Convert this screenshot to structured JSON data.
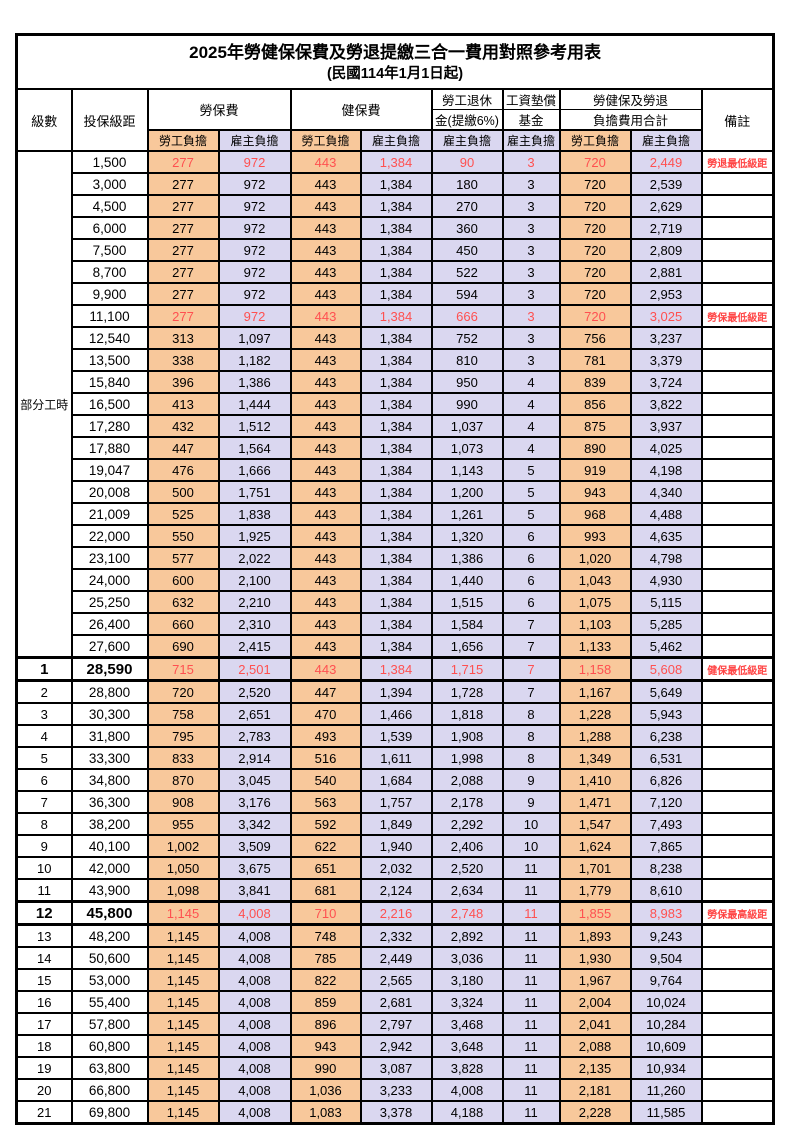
{
  "title": "2025年勞健保保費及勞退提繳三合一費用對照參考用表",
  "subtitle": "(民國114年1月1日起)",
  "columns": {
    "level": "級數",
    "salary": "投保級距",
    "labor_ins": "勞保費",
    "health_ins": "健保費",
    "pension_l1": "勞工退休",
    "pension_l2": "金(提繳6%)",
    "fund_l1": "工資墊償",
    "fund_l2": "基金",
    "total_l1": "勞健保及勞退",
    "total_l2": "負擔費用合計",
    "remark": "備註",
    "employee_share": "勞工負擔",
    "employer_share": "雇主負擔"
  },
  "part_time_label": "部分工時",
  "part_time_rowspan": 23,
  "colors": {
    "employee_bg": "#F8C89B",
    "employer_bg": "#DAD7F0",
    "highlight_red": "#FF5050"
  },
  "rows": [
    {
      "level": "",
      "salary": "1,500",
      "li_emp": "277",
      "li_er": "972",
      "hi_emp": "443",
      "hi_er": "1,384",
      "pension": "90",
      "fund": "3",
      "tot_emp": "720",
      "tot_er": "2,449",
      "remark": "勞退最低級距",
      "red": true,
      "bold": false
    },
    {
      "level": "",
      "salary": "3,000",
      "li_emp": "277",
      "li_er": "972",
      "hi_emp": "443",
      "hi_er": "1,384",
      "pension": "180",
      "fund": "3",
      "tot_emp": "720",
      "tot_er": "2,539",
      "remark": "",
      "red": false,
      "bold": false
    },
    {
      "level": "",
      "salary": "4,500",
      "li_emp": "277",
      "li_er": "972",
      "hi_emp": "443",
      "hi_er": "1,384",
      "pension": "270",
      "fund": "3",
      "tot_emp": "720",
      "tot_er": "2,629",
      "remark": "",
      "red": false,
      "bold": false
    },
    {
      "level": "",
      "salary": "6,000",
      "li_emp": "277",
      "li_er": "972",
      "hi_emp": "443",
      "hi_er": "1,384",
      "pension": "360",
      "fund": "3",
      "tot_emp": "720",
      "tot_er": "2,719",
      "remark": "",
      "red": false,
      "bold": false
    },
    {
      "level": "",
      "salary": "7,500",
      "li_emp": "277",
      "li_er": "972",
      "hi_emp": "443",
      "hi_er": "1,384",
      "pension": "450",
      "fund": "3",
      "tot_emp": "720",
      "tot_er": "2,809",
      "remark": "",
      "red": false,
      "bold": false
    },
    {
      "level": "",
      "salary": "8,700",
      "li_emp": "277",
      "li_er": "972",
      "hi_emp": "443",
      "hi_er": "1,384",
      "pension": "522",
      "fund": "3",
      "tot_emp": "720",
      "tot_er": "2,881",
      "remark": "",
      "red": false,
      "bold": false
    },
    {
      "level": "",
      "salary": "9,900",
      "li_emp": "277",
      "li_er": "972",
      "hi_emp": "443",
      "hi_er": "1,384",
      "pension": "594",
      "fund": "3",
      "tot_emp": "720",
      "tot_er": "2,953",
      "remark": "",
      "red": false,
      "bold": false
    },
    {
      "level": "",
      "salary": "11,100",
      "li_emp": "277",
      "li_er": "972",
      "hi_emp": "443",
      "hi_er": "1,384",
      "pension": "666",
      "fund": "3",
      "tot_emp": "720",
      "tot_er": "3,025",
      "remark": "勞保最低級距",
      "red": true,
      "bold": false
    },
    {
      "level": "",
      "salary": "12,540",
      "li_emp": "313",
      "li_er": "1,097",
      "hi_emp": "443",
      "hi_er": "1,384",
      "pension": "752",
      "fund": "3",
      "tot_emp": "756",
      "tot_er": "3,237",
      "remark": "",
      "red": false,
      "bold": false
    },
    {
      "level": "",
      "salary": "13,500",
      "li_emp": "338",
      "li_er": "1,182",
      "hi_emp": "443",
      "hi_er": "1,384",
      "pension": "810",
      "fund": "3",
      "tot_emp": "781",
      "tot_er": "3,379",
      "remark": "",
      "red": false,
      "bold": false
    },
    {
      "level": "",
      "salary": "15,840",
      "li_emp": "396",
      "li_er": "1,386",
      "hi_emp": "443",
      "hi_er": "1,384",
      "pension": "950",
      "fund": "4",
      "tot_emp": "839",
      "tot_er": "3,724",
      "remark": "",
      "red": false,
      "bold": false
    },
    {
      "level": "",
      "salary": "16,500",
      "li_emp": "413",
      "li_er": "1,444",
      "hi_emp": "443",
      "hi_er": "1,384",
      "pension": "990",
      "fund": "4",
      "tot_emp": "856",
      "tot_er": "3,822",
      "remark": "",
      "red": false,
      "bold": false
    },
    {
      "level": "",
      "salary": "17,280",
      "li_emp": "432",
      "li_er": "1,512",
      "hi_emp": "443",
      "hi_er": "1,384",
      "pension": "1,037",
      "fund": "4",
      "tot_emp": "875",
      "tot_er": "3,937",
      "remark": "",
      "red": false,
      "bold": false
    },
    {
      "level": "",
      "salary": "17,880",
      "li_emp": "447",
      "li_er": "1,564",
      "hi_emp": "443",
      "hi_er": "1,384",
      "pension": "1,073",
      "fund": "4",
      "tot_emp": "890",
      "tot_er": "4,025",
      "remark": "",
      "red": false,
      "bold": false
    },
    {
      "level": "",
      "salary": "19,047",
      "li_emp": "476",
      "li_er": "1,666",
      "hi_emp": "443",
      "hi_er": "1,384",
      "pension": "1,143",
      "fund": "5",
      "tot_emp": "919",
      "tot_er": "4,198",
      "remark": "",
      "red": false,
      "bold": false
    },
    {
      "level": "",
      "salary": "20,008",
      "li_emp": "500",
      "li_er": "1,751",
      "hi_emp": "443",
      "hi_er": "1,384",
      "pension": "1,200",
      "fund": "5",
      "tot_emp": "943",
      "tot_er": "4,340",
      "remark": "",
      "red": false,
      "bold": false
    },
    {
      "level": "",
      "salary": "21,009",
      "li_emp": "525",
      "li_er": "1,838",
      "hi_emp": "443",
      "hi_er": "1,384",
      "pension": "1,261",
      "fund": "5",
      "tot_emp": "968",
      "tot_er": "4,488",
      "remark": "",
      "red": false,
      "bold": false
    },
    {
      "level": "",
      "salary": "22,000",
      "li_emp": "550",
      "li_er": "1,925",
      "hi_emp": "443",
      "hi_er": "1,384",
      "pension": "1,320",
      "fund": "6",
      "tot_emp": "993",
      "tot_er": "4,635",
      "remark": "",
      "red": false,
      "bold": false
    },
    {
      "level": "",
      "salary": "23,100",
      "li_emp": "577",
      "li_er": "2,022",
      "hi_emp": "443",
      "hi_er": "1,384",
      "pension": "1,386",
      "fund": "6",
      "tot_emp": "1,020",
      "tot_er": "4,798",
      "remark": "",
      "red": false,
      "bold": false
    },
    {
      "level": "",
      "salary": "24,000",
      "li_emp": "600",
      "li_er": "2,100",
      "hi_emp": "443",
      "hi_er": "1,384",
      "pension": "1,440",
      "fund": "6",
      "tot_emp": "1,043",
      "tot_er": "4,930",
      "remark": "",
      "red": false,
      "bold": false
    },
    {
      "level": "",
      "salary": "25,250",
      "li_emp": "632",
      "li_er": "2,210",
      "hi_emp": "443",
      "hi_er": "1,384",
      "pension": "1,515",
      "fund": "6",
      "tot_emp": "1,075",
      "tot_er": "5,115",
      "remark": "",
      "red": false,
      "bold": false
    },
    {
      "level": "",
      "salary": "26,400",
      "li_emp": "660",
      "li_er": "2,310",
      "hi_emp": "443",
      "hi_er": "1,384",
      "pension": "1,584",
      "fund": "7",
      "tot_emp": "1,103",
      "tot_er": "5,285",
      "remark": "",
      "red": false,
      "bold": false
    },
    {
      "level": "",
      "salary": "27,600",
      "li_emp": "690",
      "li_er": "2,415",
      "hi_emp": "443",
      "hi_er": "1,384",
      "pension": "1,656",
      "fund": "7",
      "tot_emp": "1,133",
      "tot_er": "5,462",
      "remark": "",
      "red": false,
      "bold": false
    },
    {
      "level": "1",
      "salary": "28,590",
      "li_emp": "715",
      "li_er": "2,501",
      "hi_emp": "443",
      "hi_er": "1,384",
      "pension": "1,715",
      "fund": "7",
      "tot_emp": "1,158",
      "tot_er": "5,608",
      "remark": "健保最低級距",
      "red": true,
      "bold": true
    },
    {
      "level": "2",
      "salary": "28,800",
      "li_emp": "720",
      "li_er": "2,520",
      "hi_emp": "447",
      "hi_er": "1,394",
      "pension": "1,728",
      "fund": "7",
      "tot_emp": "1,167",
      "tot_er": "5,649",
      "remark": "",
      "red": false,
      "bold": false
    },
    {
      "level": "3",
      "salary": "30,300",
      "li_emp": "758",
      "li_er": "2,651",
      "hi_emp": "470",
      "hi_er": "1,466",
      "pension": "1,818",
      "fund": "8",
      "tot_emp": "1,228",
      "tot_er": "5,943",
      "remark": "",
      "red": false,
      "bold": false
    },
    {
      "level": "4",
      "salary": "31,800",
      "li_emp": "795",
      "li_er": "2,783",
      "hi_emp": "493",
      "hi_er": "1,539",
      "pension": "1,908",
      "fund": "8",
      "tot_emp": "1,288",
      "tot_er": "6,238",
      "remark": "",
      "red": false,
      "bold": false
    },
    {
      "level": "5",
      "salary": "33,300",
      "li_emp": "833",
      "li_er": "2,914",
      "hi_emp": "516",
      "hi_er": "1,611",
      "pension": "1,998",
      "fund": "8",
      "tot_emp": "1,349",
      "tot_er": "6,531",
      "remark": "",
      "red": false,
      "bold": false
    },
    {
      "level": "6",
      "salary": "34,800",
      "li_emp": "870",
      "li_er": "3,045",
      "hi_emp": "540",
      "hi_er": "1,684",
      "pension": "2,088",
      "fund": "9",
      "tot_emp": "1,410",
      "tot_er": "6,826",
      "remark": "",
      "red": false,
      "bold": false
    },
    {
      "level": "7",
      "salary": "36,300",
      "li_emp": "908",
      "li_er": "3,176",
      "hi_emp": "563",
      "hi_er": "1,757",
      "pension": "2,178",
      "fund": "9",
      "tot_emp": "1,471",
      "tot_er": "7,120",
      "remark": "",
      "red": false,
      "bold": false
    },
    {
      "level": "8",
      "salary": "38,200",
      "li_emp": "955",
      "li_er": "3,342",
      "hi_emp": "592",
      "hi_er": "1,849",
      "pension": "2,292",
      "fund": "10",
      "tot_emp": "1,547",
      "tot_er": "7,493",
      "remark": "",
      "red": false,
      "bold": false
    },
    {
      "level": "9",
      "salary": "40,100",
      "li_emp": "1,002",
      "li_er": "3,509",
      "hi_emp": "622",
      "hi_er": "1,940",
      "pension": "2,406",
      "fund": "10",
      "tot_emp": "1,624",
      "tot_er": "7,865",
      "remark": "",
      "red": false,
      "bold": false
    },
    {
      "level": "10",
      "salary": "42,000",
      "li_emp": "1,050",
      "li_er": "3,675",
      "hi_emp": "651",
      "hi_er": "2,032",
      "pension": "2,520",
      "fund": "11",
      "tot_emp": "1,701",
      "tot_er": "8,238",
      "remark": "",
      "red": false,
      "bold": false
    },
    {
      "level": "11",
      "salary": "43,900",
      "li_emp": "1,098",
      "li_er": "3,841",
      "hi_emp": "681",
      "hi_er": "2,124",
      "pension": "2,634",
      "fund": "11",
      "tot_emp": "1,779",
      "tot_er": "8,610",
      "remark": "",
      "red": false,
      "bold": false
    },
    {
      "level": "12",
      "salary": "45,800",
      "li_emp": "1,145",
      "li_er": "4,008",
      "hi_emp": "710",
      "hi_er": "2,216",
      "pension": "2,748",
      "fund": "11",
      "tot_emp": "1,855",
      "tot_er": "8,983",
      "remark": "勞保最高級距",
      "red": true,
      "bold": true
    },
    {
      "level": "13",
      "salary": "48,200",
      "li_emp": "1,145",
      "li_er": "4,008",
      "hi_emp": "748",
      "hi_er": "2,332",
      "pension": "2,892",
      "fund": "11",
      "tot_emp": "1,893",
      "tot_er": "9,243",
      "remark": "",
      "red": false,
      "bold": false
    },
    {
      "level": "14",
      "salary": "50,600",
      "li_emp": "1,145",
      "li_er": "4,008",
      "hi_emp": "785",
      "hi_er": "2,449",
      "pension": "3,036",
      "fund": "11",
      "tot_emp": "1,930",
      "tot_er": "9,504",
      "remark": "",
      "red": false,
      "bold": false
    },
    {
      "level": "15",
      "salary": "53,000",
      "li_emp": "1,145",
      "li_er": "4,008",
      "hi_emp": "822",
      "hi_er": "2,565",
      "pension": "3,180",
      "fund": "11",
      "tot_emp": "1,967",
      "tot_er": "9,764",
      "remark": "",
      "red": false,
      "bold": false
    },
    {
      "level": "16",
      "salary": "55,400",
      "li_emp": "1,145",
      "li_er": "4,008",
      "hi_emp": "859",
      "hi_er": "2,681",
      "pension": "3,324",
      "fund": "11",
      "tot_emp": "2,004",
      "tot_er": "10,024",
      "remark": "",
      "red": false,
      "bold": false
    },
    {
      "level": "17",
      "salary": "57,800",
      "li_emp": "1,145",
      "li_er": "4,008",
      "hi_emp": "896",
      "hi_er": "2,797",
      "pension": "3,468",
      "fund": "11",
      "tot_emp": "2,041",
      "tot_er": "10,284",
      "remark": "",
      "red": false,
      "bold": false
    },
    {
      "level": "18",
      "salary": "60,800",
      "li_emp": "1,145",
      "li_er": "4,008",
      "hi_emp": "943",
      "hi_er": "2,942",
      "pension": "3,648",
      "fund": "11",
      "tot_emp": "2,088",
      "tot_er": "10,609",
      "remark": "",
      "red": false,
      "bold": false
    },
    {
      "level": "19",
      "salary": "63,800",
      "li_emp": "1,145",
      "li_er": "4,008",
      "hi_emp": "990",
      "hi_er": "3,087",
      "pension": "3,828",
      "fund": "11",
      "tot_emp": "2,135",
      "tot_er": "10,934",
      "remark": "",
      "red": false,
      "bold": false
    },
    {
      "level": "20",
      "salary": "66,800",
      "li_emp": "1,145",
      "li_er": "4,008",
      "hi_emp": "1,036",
      "hi_er": "3,233",
      "pension": "4,008",
      "fund": "11",
      "tot_emp": "2,181",
      "tot_er": "11,260",
      "remark": "",
      "red": false,
      "bold": false
    },
    {
      "level": "21",
      "salary": "69,800",
      "li_emp": "1,145",
      "li_er": "4,008",
      "hi_emp": "1,083",
      "hi_er": "3,378",
      "pension": "4,188",
      "fund": "11",
      "tot_emp": "2,228",
      "tot_er": "11,585",
      "remark": "",
      "red": false,
      "bold": false
    }
  ]
}
